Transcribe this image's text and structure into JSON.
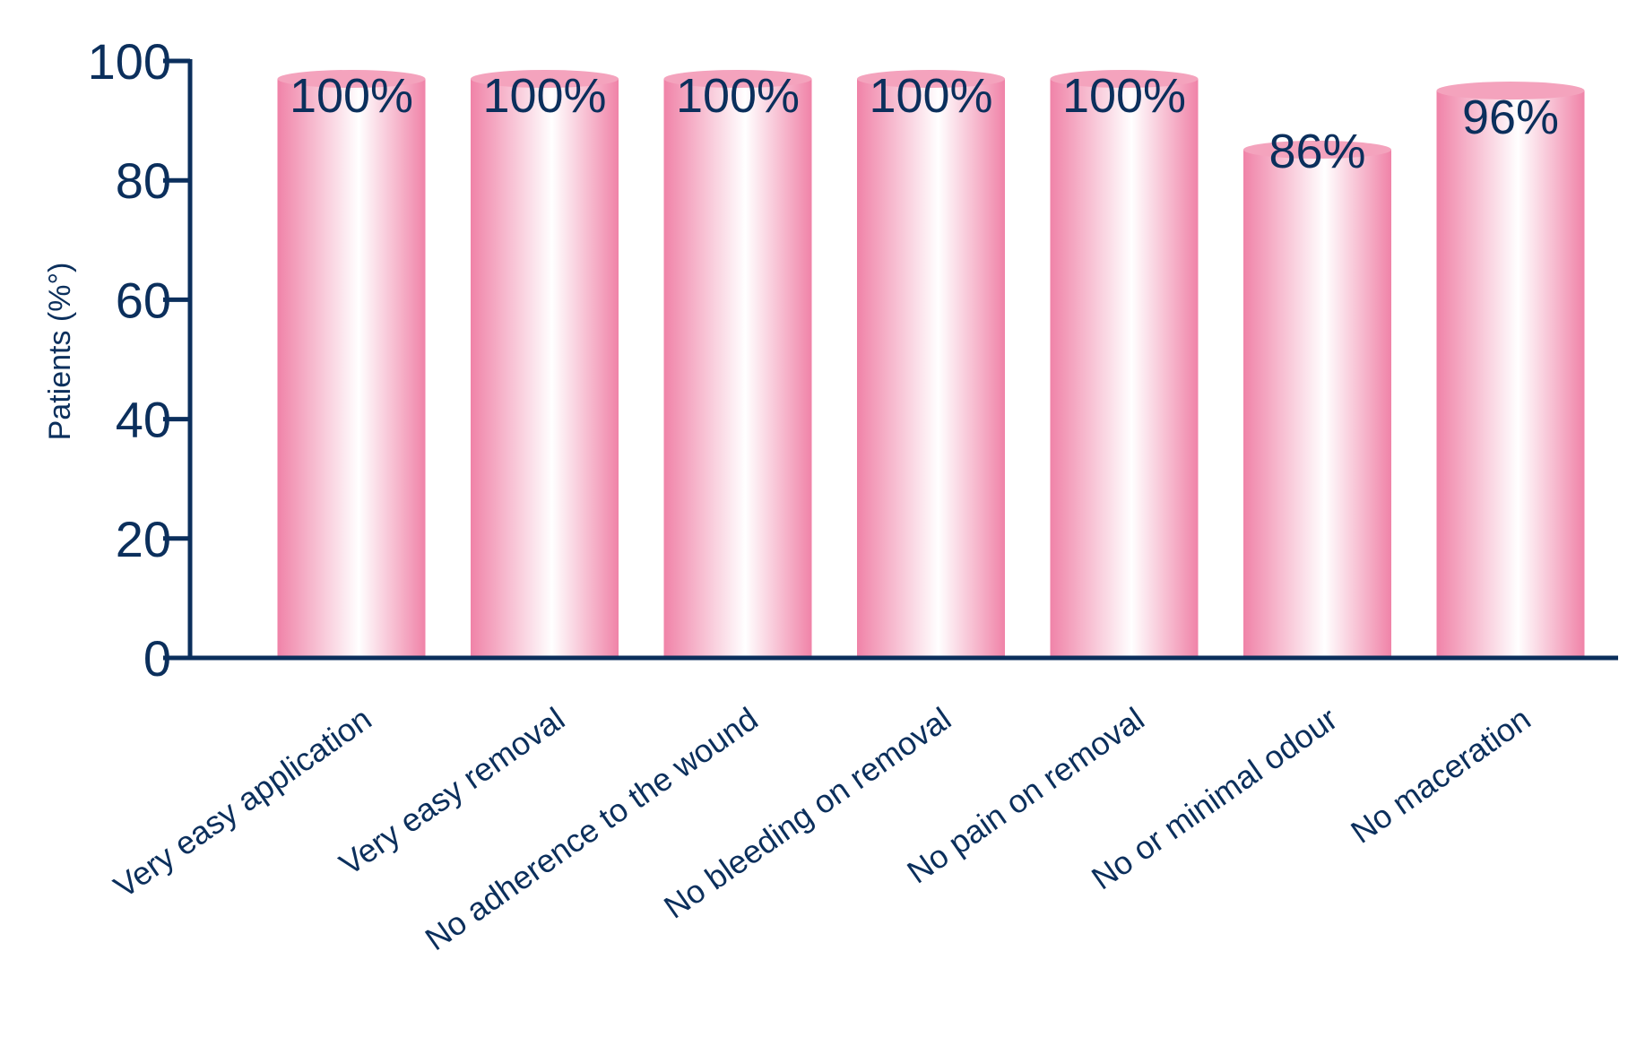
{
  "chart_data": {
    "type": "bar",
    "title": "",
    "xlabel": "",
    "ylabel": "Patients (%°)",
    "ylim": [
      0,
      100
    ],
    "yticks": [
      0,
      20,
      40,
      60,
      80,
      100
    ],
    "grid": false,
    "legend": "none",
    "categories": [
      "Very easy application",
      "Very easy removal",
      "No adherence to the wound",
      "No bleeding on removal",
      "No pain on removal",
      "No or minimal odour",
      "No maceration"
    ],
    "values": [
      100,
      100,
      100,
      100,
      100,
      86,
      96
    ],
    "data_labels": [
      "100%",
      "100%",
      "100%",
      "100%",
      "100%",
      "86%",
      "96%"
    ],
    "colors": {
      "bar_edge": "#f083a8",
      "bar_center": "#ffffff",
      "bar_top": "#f4a3bd",
      "axis": "#0b2f5c",
      "text": "#0b2f5c"
    }
  }
}
